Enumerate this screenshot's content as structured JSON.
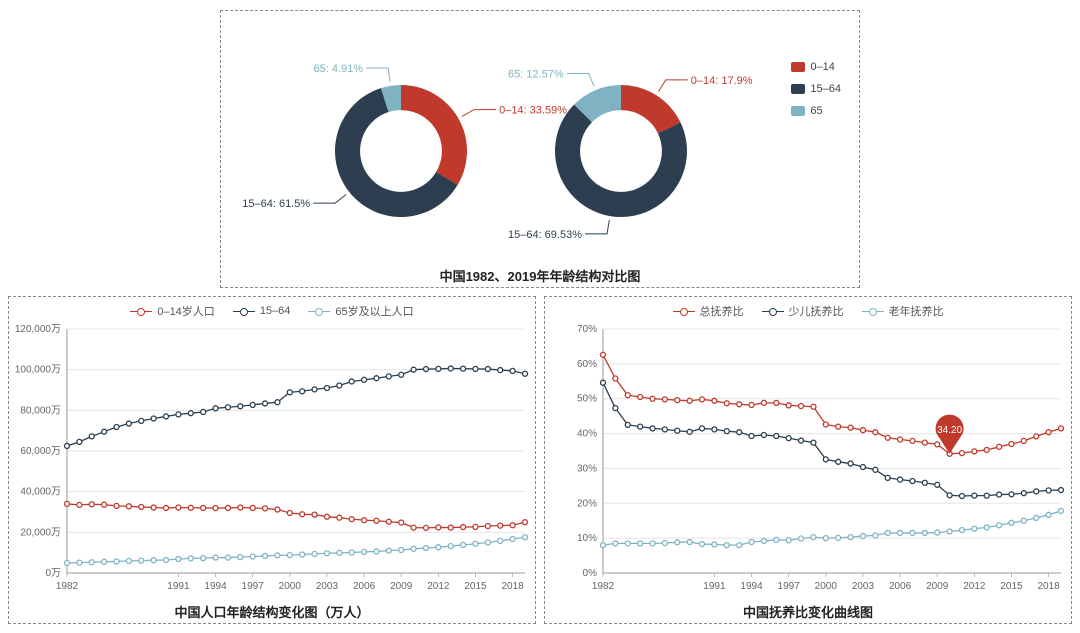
{
  "palette": {
    "red": "#c0392b",
    "navy": "#2c3e50",
    "teal": "#7fb3c4",
    "annot_bg": "#c0392b",
    "annot_fg": "#ffffff",
    "text": "#444444",
    "axis": "#666666",
    "grid": "#e5e5e5",
    "border": "#888888",
    "bg": "#ffffff"
  },
  "top": {
    "title": "中国1982、2019年年龄结构对比图",
    "donut_inner_ratio": 0.62,
    "legend": [
      {
        "label": "0–14",
        "color_key": "red"
      },
      {
        "label": "15–64",
        "color_key": "navy"
      },
      {
        "label": "65",
        "color_key": "teal"
      }
    ],
    "donuts": [
      {
        "year": "1982",
        "slices": [
          {
            "key": "0-14",
            "label": "0–14: 33.59%",
            "value": 33.59,
            "color_key": "red",
            "label_side": "right"
          },
          {
            "key": "15-64",
            "label": "15–64: 61.5%",
            "value": 61.5,
            "color_key": "navy",
            "label_side": "left"
          },
          {
            "key": "65",
            "label": "65: 4.91%",
            "value": 4.91,
            "color_key": "teal",
            "label_side": "left"
          }
        ]
      },
      {
        "year": "2019",
        "slices": [
          {
            "key": "0-14",
            "label": "0–14: 17.9%",
            "value": 17.9,
            "color_key": "red",
            "label_side": "right"
          },
          {
            "key": "15-64",
            "label": "15–64: 69.53%",
            "value": 69.53,
            "color_key": "navy",
            "label_side": "left"
          },
          {
            "key": "65",
            "label": "65: 12.57%",
            "value": 12.57,
            "color_key": "teal",
            "label_side": "left"
          }
        ]
      }
    ]
  },
  "bl": {
    "title": "中国人口年龄结构变化图（万人）",
    "legend": [
      {
        "label": "0–14岁人口",
        "color_key": "red"
      },
      {
        "label": "15–64",
        "color_key": "navy"
      },
      {
        "label": "65岁及以上人口",
        "color_key": "teal"
      }
    ],
    "y": {
      "min": 0,
      "max": 120000,
      "step": 20000,
      "suffix": "万"
    },
    "x_years": [
      1982,
      1983,
      1984,
      1985,
      1986,
      1987,
      1988,
      1989,
      1990,
      1991,
      1992,
      1993,
      1994,
      1995,
      1996,
      1997,
      1998,
      1999,
      2000,
      2001,
      2002,
      2003,
      2004,
      2005,
      2006,
      2007,
      2008,
      2009,
      2010,
      2011,
      2012,
      2013,
      2014,
      2015,
      2016,
      2017,
      2018,
      2019
    ],
    "x_tick_years": [
      1982,
      1991,
      1994,
      1997,
      2000,
      2003,
      2006,
      2009,
      2012,
      2015,
      2018
    ],
    "series": [
      {
        "key": "s0_14",
        "color_key": "red",
        "values": [
          34000,
          33500,
          33800,
          33600,
          33000,
          32800,
          32500,
          32200,
          32000,
          32200,
          32100,
          32000,
          31900,
          32000,
          32200,
          32000,
          31800,
          31200,
          29500,
          28900,
          28700,
          27700,
          27200,
          26500,
          26000,
          25700,
          25200,
          24800,
          22300,
          22200,
          22400,
          22300,
          22600,
          22700,
          23100,
          23300,
          23500,
          25000
        ]
      },
      {
        "key": "s15_64",
        "color_key": "navy",
        "values": [
          62500,
          64500,
          67200,
          69500,
          71800,
          73500,
          74800,
          76000,
          77000,
          78000,
          78600,
          79200,
          81000,
          81500,
          82000,
          82700,
          83400,
          84000,
          88900,
          89400,
          90300,
          91000,
          92200,
          94200,
          95000,
          95800,
          96700,
          97500,
          100000,
          100300,
          100400,
          100600,
          100500,
          100400,
          100300,
          99800,
          99400,
          98000
        ]
      },
      {
        "key": "s65p",
        "color_key": "teal",
        "values": [
          4900,
          5100,
          5300,
          5500,
          5700,
          5900,
          6100,
          6300,
          6400,
          6900,
          7200,
          7300,
          7600,
          7600,
          7800,
          8100,
          8400,
          8700,
          8800,
          9100,
          9400,
          9700,
          9900,
          10100,
          10400,
          10600,
          11000,
          11300,
          11900,
          12300,
          12700,
          13200,
          13800,
          14400,
          15000,
          15800,
          16700,
          17600
        ]
      }
    ]
  },
  "br": {
    "title": "中国抚养比变化曲线图",
    "legend": [
      {
        "label": "总抚养比",
        "color_key": "red"
      },
      {
        "label": "少儿抚养比",
        "color_key": "navy"
      },
      {
        "label": "老年抚养比",
        "color_key": "teal"
      }
    ],
    "y": {
      "min": 0,
      "max": 70,
      "step": 10,
      "suffix": "%"
    },
    "x_years": [
      1982,
      1983,
      1984,
      1985,
      1986,
      1987,
      1988,
      1989,
      1990,
      1991,
      1992,
      1993,
      1994,
      1995,
      1996,
      1997,
      1998,
      1999,
      2000,
      2001,
      2002,
      2003,
      2004,
      2005,
      2006,
      2007,
      2008,
      2009,
      2010,
      2011,
      2012,
      2013,
      2014,
      2015,
      2016,
      2017,
      2018,
      2019
    ],
    "x_tick_years": [
      1982,
      1991,
      1994,
      1997,
      2000,
      2003,
      2006,
      2009,
      2012,
      2015,
      2018
    ],
    "series": [
      {
        "key": "total",
        "color_key": "red",
        "values": [
          62.6,
          55.8,
          51.0,
          50.5,
          50.0,
          49.8,
          49.6,
          49.4,
          49.8,
          49.4,
          48.7,
          48.4,
          48.2,
          48.8,
          48.8,
          48.1,
          47.9,
          47.7,
          42.6,
          42.0,
          41.7,
          41.0,
          40.4,
          38.8,
          38.3,
          37.9,
          37.4,
          36.9,
          34.2,
          34.4,
          34.9,
          35.3,
          36.2,
          37.0,
          37.9,
          39.2,
          40.4,
          41.5
        ]
      },
      {
        "key": "child",
        "color_key": "navy",
        "values": [
          54.6,
          47.3,
          42.5,
          42.0,
          41.5,
          41.2,
          40.8,
          40.5,
          41.5,
          41.2,
          40.7,
          40.4,
          39.3,
          39.6,
          39.3,
          38.7,
          38.0,
          37.4,
          32.6,
          31.9,
          31.4,
          30.4,
          29.6,
          27.3,
          26.8,
          26.4,
          25.9,
          25.3,
          22.3,
          22.1,
          22.2,
          22.2,
          22.5,
          22.6,
          22.9,
          23.4,
          23.7,
          23.8
        ]
      },
      {
        "key": "old",
        "color_key": "teal",
        "values": [
          8.0,
          8.5,
          8.5,
          8.5,
          8.5,
          8.6,
          8.8,
          8.9,
          8.3,
          8.2,
          8.0,
          8.0,
          8.9,
          9.2,
          9.5,
          9.4,
          9.9,
          10.3,
          10.0,
          10.1,
          10.3,
          10.6,
          10.8,
          11.5,
          11.5,
          11.5,
          11.5,
          11.6,
          11.9,
          12.3,
          12.7,
          13.1,
          13.7,
          14.4,
          15.0,
          15.8,
          16.7,
          17.8
        ]
      }
    ],
    "annotation": {
      "series": "total",
      "year": 2010,
      "value": 34.2,
      "text": "34.20"
    }
  }
}
